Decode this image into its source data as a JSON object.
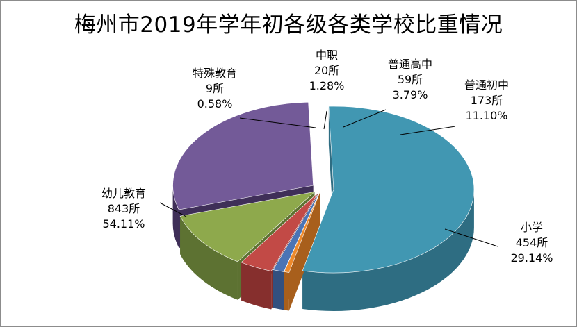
{
  "chart_data": {
    "type": "pie",
    "title": "梅州市2019年学年初各级各类学校比重情况",
    "slices": [
      {
        "name": "幼儿教育",
        "count": "843所",
        "pct_text": "54.11%",
        "value": 54.11,
        "color": "#4197b2",
        "side": "#2e6d82"
      },
      {
        "name": "特殊教育",
        "count": "9所",
        "pct_text": "0.58%",
        "value": 0.58,
        "color": "#ee8a2c",
        "side": "#a85f1c"
      },
      {
        "name": "中职",
        "count": "20所",
        "pct_text": "1.28%",
        "value": 1.28,
        "color": "#4a74b5",
        "side": "#33507f"
      },
      {
        "name": "普通高中",
        "count": "59所",
        "pct_text": "3.79%",
        "value": 3.79,
        "color": "#c24a46",
        "side": "#862f2d"
      },
      {
        "name": "普通初中",
        "count": "173所",
        "pct_text": "11.10%",
        "value": 11.1,
        "color": "#8ea94c",
        "side": "#5d7232"
      },
      {
        "name": "小学",
        "count": "454所",
        "pct_text": "29.14%",
        "value": 29.14,
        "color": "#735a98",
        "side": "#3f2f58"
      }
    ]
  }
}
